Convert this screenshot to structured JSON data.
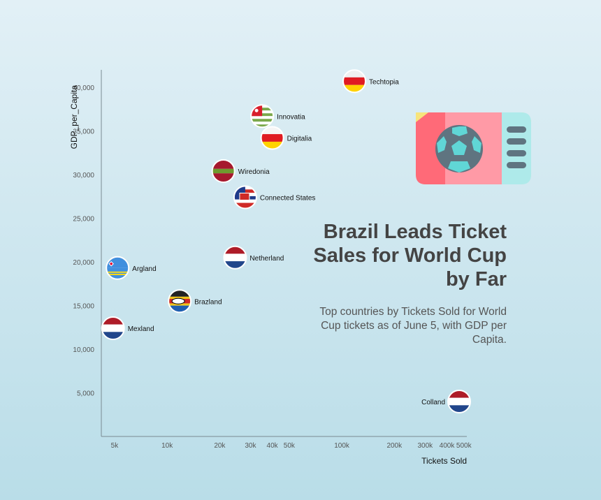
{
  "title": "Brazil Leads Ticket Sales for World Cup by Far",
  "subtitle": "Top countries by Tickets Sold for World Cup tickets as of June 5, with GDP per Capita.",
  "chart_data": {
    "type": "scatter",
    "xlabel": "Tickets Sold",
    "ylabel": "GDP_per_Capita",
    "xscale": "log",
    "xlim": [
      4200,
      520000
    ],
    "ylim": [
      0,
      42000
    ],
    "x_ticks": [
      5000,
      10000,
      20000,
      30000,
      40000,
      50000,
      100000,
      200000,
      300000,
      400000,
      500000
    ],
    "x_tick_labels": [
      "5k",
      "10k",
      "20k",
      "30k",
      "40k",
      "50k",
      "100k",
      "200k",
      "300k",
      "400k",
      "500k"
    ],
    "y_ticks": [
      5000,
      10000,
      15000,
      20000,
      25000,
      30000,
      35000,
      40000
    ],
    "y_tick_labels": [
      "5,000",
      "10,000",
      "15,000",
      "20,000",
      "25,000",
      "30,000",
      "35,000",
      "40,000"
    ],
    "points": [
      {
        "label": "Techtopia",
        "x": 118000,
        "y": 40700,
        "flag": "red-white-yellow"
      },
      {
        "label": "Innovatia",
        "x": 35000,
        "y": 36700,
        "flag": "green-stripes-red-canton"
      },
      {
        "label": "Digitalia",
        "x": 40000,
        "y": 34200,
        "flag": "white-red-yellow"
      },
      {
        "label": "Wiredonia",
        "x": 21000,
        "y": 30400,
        "flag": "red-green-red"
      },
      {
        "label": "Connected States",
        "x": 28000,
        "y": 27400,
        "flag": "white-red-blue-emblem"
      },
      {
        "label": "Netherland",
        "x": 24500,
        "y": 20500,
        "flag": "red-white-blue"
      },
      {
        "label": "Argland",
        "x": 5200,
        "y": 19300,
        "flag": "blue-yellow-stripes"
      },
      {
        "label": "Brazland",
        "x": 11800,
        "y": 15500,
        "flag": "black-yellow-blue"
      },
      {
        "label": "Mexland",
        "x": 4900,
        "y": 12400,
        "flag": "red-white-blue"
      },
      {
        "label": "Colland",
        "x": 470000,
        "y": 4000,
        "flag": "red-white-blue"
      }
    ]
  },
  "icon": {
    "name": "ticket-icon",
    "colors": [
      "#ff6a78",
      "#ff9aa6",
      "#f7e47c",
      "#aeeaea",
      "#5f7480",
      "#60d6d6"
    ]
  }
}
